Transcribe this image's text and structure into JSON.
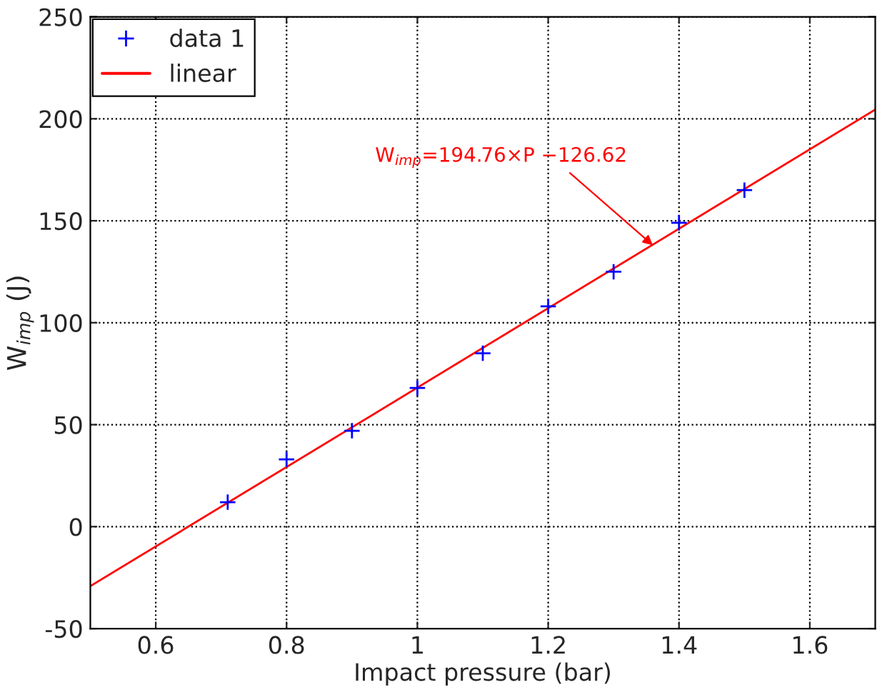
{
  "chart_data": {
    "type": "scatter",
    "xlabel": "Impact pressure (bar)",
    "ylabel": "W$_{imp}$ (J)",
    "xlim": [
      0.5,
      1.7
    ],
    "ylim": [
      -50,
      250
    ],
    "xticks": [
      0.6,
      0.8,
      {
        "value": 1.0,
        "label": "1"
      },
      1.2,
      1.4,
      1.6
    ],
    "yticks": [
      -50,
      0,
      50,
      100,
      150,
      200,
      250
    ],
    "grid": true,
    "legend": "top left",
    "series": [
      {
        "name": "data 1",
        "color": "#0000ff",
        "marker": "cross",
        "x": [
          0.71,
          0.8,
          0.9,
          1.0,
          1.1,
          1.2,
          1.3,
          1.4,
          1.5
        ],
        "values": [
          12,
          33,
          47,
          68,
          85,
          108,
          125,
          149,
          165
        ]
      },
      {
        "name": "linear",
        "type": "line",
        "color": "#ff0000",
        "marker": "none",
        "line_style": "solid",
        "x": [
          0.5,
          1.7
        ],
        "values": [
          -29.2,
          204.5
        ]
      }
    ],
    "annotations": [
      {
        "text": "W$_{imp}$=194.76×P −126.62",
        "x": 1.36,
        "y": 138
      }
    ]
  }
}
